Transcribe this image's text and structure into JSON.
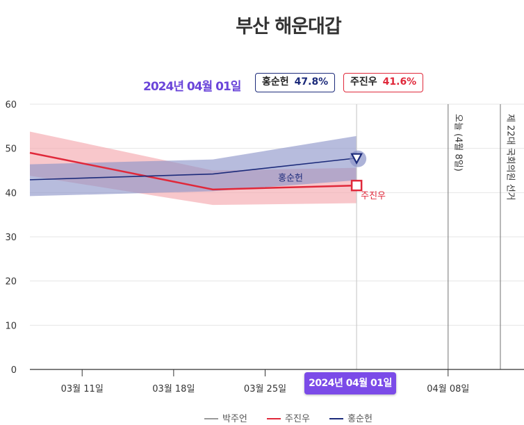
{
  "title": "부산 해운대갑",
  "hover": {
    "date": "2024년 04월 01일",
    "badge": "2024년 04월 01일",
    "entries": [
      {
        "name": "홍순헌",
        "value": "47.8%"
      },
      {
        "name": "주진우",
        "value": "41.6%"
      }
    ]
  },
  "chart_data": {
    "type": "line",
    "title": "부산 해운대갑",
    "xlabel": "",
    "ylabel": "",
    "ylim": [
      0,
      60
    ],
    "yticks": [
      0,
      10,
      20,
      30,
      40,
      50,
      60
    ],
    "xlim": [
      "2024-03-07",
      "2024-04-12"
    ],
    "xticks": [
      {
        "date": "2024-03-11",
        "label": "03월 11일"
      },
      {
        "date": "2024-03-18",
        "label": "03월 18일"
      },
      {
        "date": "2024-03-25",
        "label": "03월 25일"
      },
      {
        "date": "2024-04-08",
        "label": "04월 08일"
      }
    ],
    "grid": true,
    "legend_position": "bottom",
    "series": [
      {
        "name": "박주언",
        "color": "#999999",
        "points": []
      },
      {
        "name": "주진우",
        "color": "#e0283a",
        "band_color": "#f4a5ab",
        "points": [
          {
            "x": "2024-03-07",
            "y": 49.0,
            "low": 43.8,
            "high": 53.8
          },
          {
            "x": "2024-03-21",
            "y": 40.7,
            "low": 37.2,
            "high": 45.0
          },
          {
            "x": "2024-04-01",
            "y": 41.6,
            "low": 37.6,
            "high": 45.6
          }
        ],
        "end_label": "주진우"
      },
      {
        "name": "홍순헌",
        "color": "#1b2a7a",
        "band_color": "#8a93c8",
        "points": [
          {
            "x": "2024-03-07",
            "y": 42.9,
            "low": 39.2,
            "high": 46.4
          },
          {
            "x": "2024-03-21",
            "y": 44.2,
            "low": 40.3,
            "high": 47.5
          },
          {
            "x": "2024-04-01",
            "y": 47.8,
            "low": 42.8,
            "high": 52.8
          }
        ],
        "end_label": "홍순헌"
      }
    ],
    "vertical_markers": [
      {
        "x": "2024-04-01",
        "label": ""
      },
      {
        "x": "2024-04-08",
        "label": "오늘 (4월 8일)"
      },
      {
        "x": "2024-04-12",
        "label": "제 22대 국회의원 선거"
      }
    ]
  },
  "colors": {
    "accent": "#7b4be8",
    "grid": "#e6e6e6",
    "axis": "#333333"
  }
}
